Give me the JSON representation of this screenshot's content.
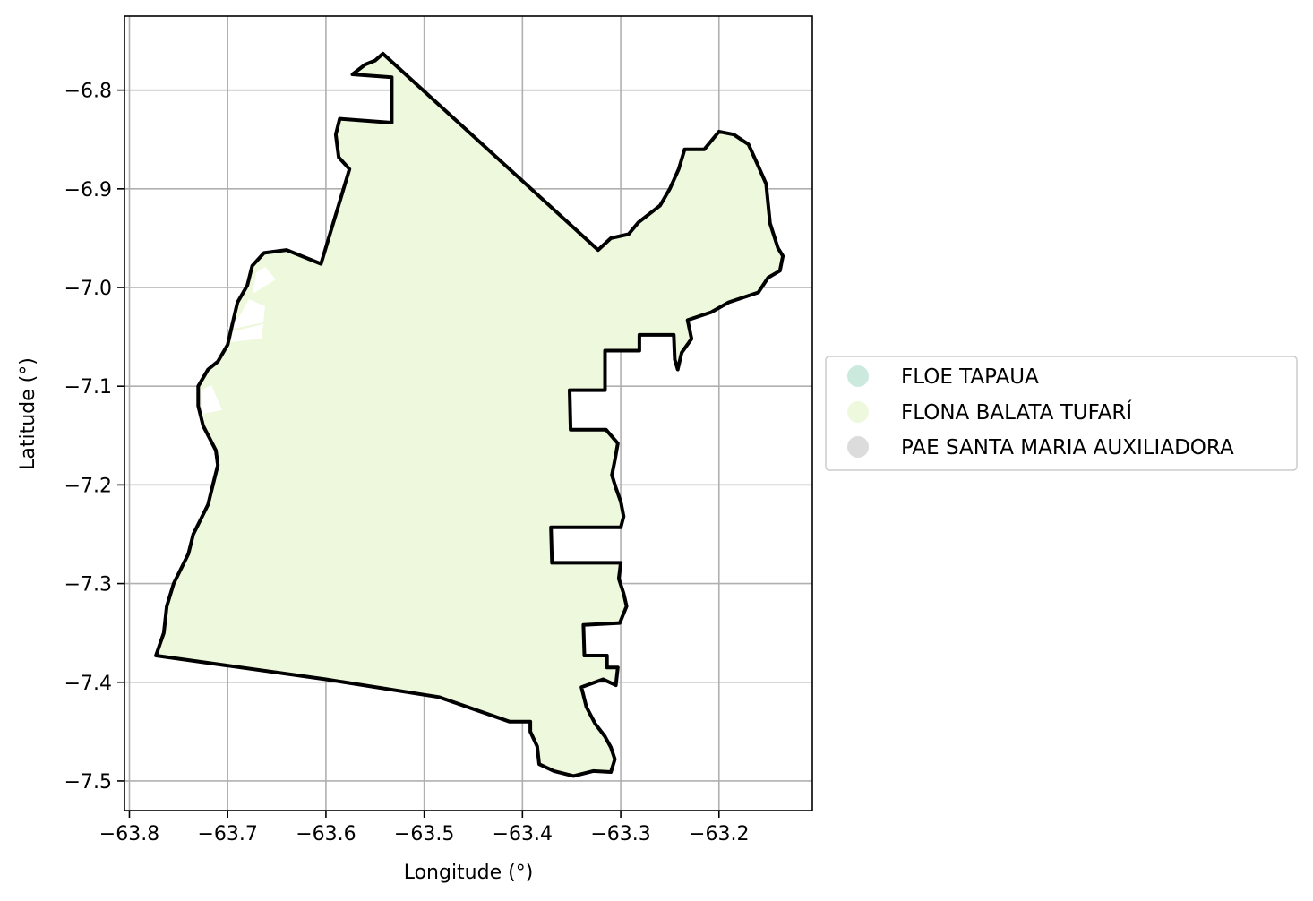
{
  "chart_data": {
    "type": "map",
    "xlabel": "Longitude (°)",
    "ylabel": "Latitude (°)",
    "xlim": [
      -63.805,
      -63.105
    ],
    "ylim": [
      -7.53,
      -6.725
    ],
    "grid": true,
    "x_ticks": [
      {
        "value": -63.8,
        "label": "−63.8"
      },
      {
        "value": -63.7,
        "label": "−63.7"
      },
      {
        "value": -63.6,
        "label": "−63.6"
      },
      {
        "value": -63.5,
        "label": "−63.5"
      },
      {
        "value": -63.4,
        "label": "−63.4"
      },
      {
        "value": -63.3,
        "label": "−63.3"
      },
      {
        "value": -63.2,
        "label": "−63.2"
      }
    ],
    "y_ticks": [
      {
        "value": -6.8,
        "label": "−6.8"
      },
      {
        "value": -6.9,
        "label": "−6.9"
      },
      {
        "value": -7.0,
        "label": "−7.0"
      },
      {
        "value": -7.1,
        "label": "−7.1"
      },
      {
        "value": -7.2,
        "label": "−7.2"
      },
      {
        "value": -7.3,
        "label": "−7.3"
      },
      {
        "value": -7.4,
        "label": "−7.4"
      },
      {
        "value": -7.5,
        "label": "−7.5"
      }
    ],
    "legend_position": "right",
    "series": [
      {
        "name": "FLOE TAPAUA",
        "color": "#cbe9dc"
      },
      {
        "name": "FLONA BALATA TUFARÍ",
        "color": "#edf8dc"
      },
      {
        "name": "PAE SANTA MARIA AUXILIADORA",
        "color": "#dcdcdc"
      }
    ],
    "boundary": [
      [
        -63.542,
        -6.763
      ],
      [
        -63.323,
        -6.962
      ],
      [
        -63.31,
        -6.95
      ],
      [
        -63.292,
        -6.946
      ],
      [
        -63.282,
        -6.934
      ],
      [
        -63.26,
        -6.917
      ],
      [
        -63.25,
        -6.9
      ],
      [
        -63.241,
        -6.88
      ],
      [
        -63.235,
        -6.86
      ],
      [
        -63.215,
        -6.86
      ],
      [
        -63.2,
        -6.842
      ],
      [
        -63.185,
        -6.845
      ],
      [
        -63.17,
        -6.855
      ],
      [
        -63.16,
        -6.877
      ],
      [
        -63.152,
        -6.895
      ],
      [
        -63.15,
        -6.915
      ],
      [
        -63.148,
        -6.935
      ],
      [
        -63.14,
        -6.96
      ],
      [
        -63.135,
        -6.968
      ],
      [
        -63.138,
        -6.983
      ],
      [
        -63.15,
        -6.99
      ],
      [
        -63.16,
        -7.005
      ],
      [
        -63.19,
        -7.015
      ],
      [
        -63.208,
        -7.025
      ],
      [
        -63.232,
        -7.033
      ],
      [
        -63.228,
        -7.052
      ],
      [
        -63.238,
        -7.066
      ],
      [
        -63.242,
        -7.083
      ],
      [
        -63.245,
        -7.073
      ],
      [
        -63.246,
        -7.048
      ],
      [
        -63.281,
        -7.048
      ],
      [
        -63.281,
        -7.064
      ],
      [
        -63.316,
        -7.064
      ],
      [
        -63.316,
        -7.104
      ],
      [
        -63.352,
        -7.104
      ],
      [
        -63.351,
        -7.144
      ],
      [
        -63.315,
        -7.144
      ],
      [
        -63.303,
        -7.158
      ],
      [
        -63.306,
        -7.175
      ],
      [
        -63.309,
        -7.19
      ],
      [
        -63.305,
        -7.203
      ],
      [
        -63.3,
        -7.217
      ],
      [
        -63.297,
        -7.232
      ],
      [
        -63.3,
        -7.243
      ],
      [
        -63.371,
        -7.243
      ],
      [
        -63.37,
        -7.279
      ],
      [
        -63.3,
        -7.279
      ],
      [
        -63.302,
        -7.295
      ],
      [
        -63.297,
        -7.31
      ],
      [
        -63.294,
        -7.323
      ],
      [
        -63.301,
        -7.34
      ],
      [
        -63.338,
        -7.342
      ],
      [
        -63.337,
        -7.373
      ],
      [
        -63.314,
        -7.373
      ],
      [
        -63.314,
        -7.385
      ],
      [
        -63.303,
        -7.385
      ],
      [
        -63.305,
        -7.403
      ],
      [
        -63.318,
        -7.397
      ],
      [
        -63.34,
        -7.405
      ],
      [
        -63.335,
        -7.425
      ],
      [
        -63.326,
        -7.442
      ],
      [
        -63.316,
        -7.455
      ],
      [
        -63.31,
        -7.466
      ],
      [
        -63.306,
        -7.478
      ],
      [
        -63.31,
        -7.491
      ],
      [
        -63.328,
        -7.49
      ],
      [
        -63.348,
        -7.495
      ],
      [
        -63.368,
        -7.49
      ],
      [
        -63.383,
        -7.483
      ],
      [
        -63.385,
        -7.465
      ],
      [
        -63.392,
        -7.45
      ],
      [
        -63.392,
        -7.44
      ],
      [
        -63.413,
        -7.44
      ],
      [
        -63.485,
        -7.415
      ],
      [
        -63.6,
        -7.397
      ],
      [
        -63.773,
        -7.373
      ],
      [
        -63.765,
        -7.35
      ],
      [
        -63.762,
        -7.323
      ],
      [
        -63.755,
        -7.3
      ],
      [
        -63.74,
        -7.27
      ],
      [
        -63.735,
        -7.25
      ],
      [
        -63.72,
        -7.22
      ],
      [
        -63.715,
        -7.2
      ],
      [
        -63.71,
        -7.18
      ],
      [
        -63.712,
        -7.165
      ],
      [
        -63.725,
        -7.14
      ],
      [
        -63.73,
        -7.12
      ],
      [
        -63.73,
        -7.1
      ],
      [
        -63.72,
        -7.083
      ],
      [
        -63.71,
        -7.075
      ],
      [
        -63.7,
        -7.058
      ],
      [
        -63.695,
        -7.036
      ],
      [
        -63.69,
        -7.015
      ],
      [
        -63.68,
        -6.998
      ],
      [
        -63.675,
        -6.978
      ],
      [
        -63.663,
        -6.965
      ],
      [
        -63.64,
        -6.962
      ],
      [
        -63.605,
        -6.976
      ],
      [
        -63.576,
        -6.88
      ],
      [
        -63.587,
        -6.868
      ],
      [
        -63.59,
        -6.845
      ],
      [
        -63.586,
        -6.829
      ],
      [
        -63.533,
        -6.833
      ],
      [
        -63.533,
        -6.787
      ],
      [
        -63.573,
        -6.784
      ],
      [
        -63.56,
        -6.774
      ],
      [
        -63.55,
        -6.77
      ]
    ]
  },
  "legend": {
    "items": [
      {
        "label": "FLOE TAPAUA",
        "color": "#cbe9dc"
      },
      {
        "label": "FLONA BALATA TUFARÍ",
        "color": "#edf8dc"
      },
      {
        "label": "PAE SANTA MARIA AUXILIADORA",
        "color": "#dcdcdc"
      }
    ]
  }
}
